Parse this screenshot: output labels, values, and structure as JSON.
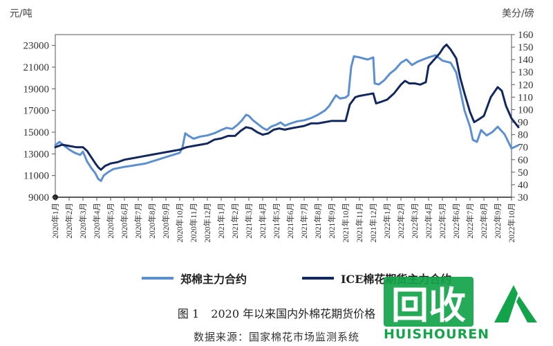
{
  "chart_data": {
    "type": "line",
    "left_axis_unit": "元/吨",
    "right_axis_unit": "美分/磅",
    "y_left": {
      "range": [
        9000,
        24000
      ],
      "ticks": [
        9000,
        11000,
        13000,
        15000,
        17000,
        19000,
        21000,
        23000
      ]
    },
    "y_right": {
      "range": [
        30,
        160
      ],
      "ticks": [
        30,
        40,
        50,
        60,
        70,
        80,
        90,
        100,
        110,
        120,
        130,
        140,
        150,
        160
      ]
    },
    "categories": [
      "2020年1月",
      "2020年2月",
      "2020年3月",
      "2020年4月",
      "2020年5月",
      "2020年6月",
      "2020年7月",
      "2020年8月",
      "2020年9月",
      "2020年10月",
      "2020年11月",
      "2020年12月",
      "2021年1月",
      "2021年2月",
      "2021年3月",
      "2021年4月",
      "2021年5月",
      "2021年6月",
      "2021年7月",
      "2021年8月",
      "2021年9月",
      "2021年10月",
      "2021年11月",
      "2021年12月",
      "2022年1月",
      "2022年2月",
      "2022年3月",
      "2022年4月",
      "2022年5月",
      "2022年6月",
      "2022年7月",
      "2022年8月",
      "2022年9月",
      "2022年10月"
    ],
    "series": [
      {
        "name": "郑棉主力合约",
        "axis": "left",
        "color": "#5b8fd0",
        "points": [
          [
            0,
            13800
          ],
          [
            0.3,
            14100
          ],
          [
            0.6,
            13800
          ],
          [
            1,
            13400
          ],
          [
            1.4,
            13100
          ],
          [
            1.8,
            12900
          ],
          [
            2,
            13200
          ],
          [
            2.3,
            12300
          ],
          [
            2.6,
            11700
          ],
          [
            2.9,
            11200
          ],
          [
            3.1,
            10700
          ],
          [
            3.3,
            10500
          ],
          [
            3.5,
            11000
          ],
          [
            3.8,
            11300
          ],
          [
            4.2,
            11600
          ],
          [
            4.6,
            11700
          ],
          [
            5,
            11800
          ],
          [
            5.5,
            11900
          ],
          [
            6,
            12000
          ],
          [
            6.5,
            12100
          ],
          [
            7,
            12300
          ],
          [
            7.5,
            12500
          ],
          [
            8,
            12700
          ],
          [
            8.5,
            12900
          ],
          [
            9,
            13100
          ],
          [
            9.2,
            13600
          ],
          [
            9.4,
            14900
          ],
          [
            9.6,
            14700
          ],
          [
            10,
            14400
          ],
          [
            10.5,
            14600
          ],
          [
            11,
            14700
          ],
          [
            11.5,
            14900
          ],
          [
            12,
            15200
          ],
          [
            12.4,
            15400
          ],
          [
            12.8,
            15300
          ],
          [
            13.2,
            15700
          ],
          [
            13.5,
            16100
          ],
          [
            13.8,
            16600
          ],
          [
            14,
            16500
          ],
          [
            14.3,
            16100
          ],
          [
            14.6,
            15800
          ],
          [
            15,
            15400
          ],
          [
            15.3,
            15200
          ],
          [
            15.6,
            15500
          ],
          [
            16,
            15700
          ],
          [
            16.3,
            15900
          ],
          [
            16.6,
            15600
          ],
          [
            17,
            15800
          ],
          [
            17.5,
            16000
          ],
          [
            18,
            16100
          ],
          [
            18.5,
            16300
          ],
          [
            19,
            16600
          ],
          [
            19.5,
            17000
          ],
          [
            19.8,
            17400
          ],
          [
            20,
            17800
          ],
          [
            20.3,
            18400
          ],
          [
            20.6,
            18100
          ],
          [
            21,
            18200
          ],
          [
            21.2,
            18400
          ],
          [
            21.4,
            21000
          ],
          [
            21.6,
            22000
          ],
          [
            22,
            21900
          ],
          [
            22.3,
            21800
          ],
          [
            22.6,
            21700
          ],
          [
            23,
            21900
          ],
          [
            23.1,
            19500
          ],
          [
            23.4,
            19400
          ],
          [
            23.8,
            19800
          ],
          [
            24.2,
            20400
          ],
          [
            24.6,
            20800
          ],
          [
            25,
            21400
          ],
          [
            25.4,
            21700
          ],
          [
            25.8,
            21200
          ],
          [
            26.2,
            21500
          ],
          [
            26.6,
            21700
          ],
          [
            27,
            21900
          ],
          [
            27.5,
            22100
          ],
          [
            28,
            21600
          ],
          [
            28.3,
            21500
          ],
          [
            28.6,
            21400
          ],
          [
            29,
            20500
          ],
          [
            29.3,
            18800
          ],
          [
            29.6,
            17000
          ],
          [
            30,
            15500
          ],
          [
            30.2,
            14300
          ],
          [
            30.5,
            14100
          ],
          [
            30.8,
            15200
          ],
          [
            31.2,
            14700
          ],
          [
            31.6,
            15000
          ],
          [
            32,
            15500
          ],
          [
            32.5,
            14800
          ],
          [
            33,
            13500
          ],
          [
            33.5,
            13800
          ]
        ]
      },
      {
        "name": "ICE棉花期货主力合约",
        "axis": "right",
        "color": "#12275e",
        "points": [
          [
            0,
            70
          ],
          [
            0.5,
            72
          ],
          [
            1,
            71
          ],
          [
            1.5,
            70
          ],
          [
            2,
            70
          ],
          [
            2.3,
            67
          ],
          [
            2.6,
            62
          ],
          [
            2.9,
            57
          ],
          [
            3.1,
            54
          ],
          [
            3.3,
            52
          ],
          [
            3.6,
            55
          ],
          [
            4,
            57
          ],
          [
            4.5,
            58
          ],
          [
            5,
            60
          ],
          [
            5.5,
            61
          ],
          [
            6,
            62
          ],
          [
            6.5,
            63
          ],
          [
            7,
            64
          ],
          [
            7.5,
            65
          ],
          [
            8,
            66
          ],
          [
            8.5,
            67
          ],
          [
            9,
            68
          ],
          [
            9.5,
            70
          ],
          [
            10,
            71
          ],
          [
            10.5,
            72
          ],
          [
            11,
            73
          ],
          [
            11.5,
            76
          ],
          [
            12,
            77
          ],
          [
            12.5,
            79
          ],
          [
            13,
            79
          ],
          [
            13.4,
            83
          ],
          [
            13.8,
            86
          ],
          [
            14.2,
            85
          ],
          [
            14.6,
            82
          ],
          [
            15,
            80
          ],
          [
            15.4,
            81
          ],
          [
            15.8,
            84
          ],
          [
            16.2,
            85
          ],
          [
            16.6,
            84
          ],
          [
            17,
            85
          ],
          [
            17.5,
            86
          ],
          [
            18,
            87
          ],
          [
            18.5,
            89
          ],
          [
            19,
            89
          ],
          [
            19.5,
            90
          ],
          [
            20,
            91
          ],
          [
            20.5,
            91
          ],
          [
            21,
            91
          ],
          [
            21.3,
            104
          ],
          [
            21.7,
            110
          ],
          [
            22,
            111
          ],
          [
            22.5,
            112
          ],
          [
            23,
            113
          ],
          [
            23.2,
            105
          ],
          [
            23.5,
            106
          ],
          [
            24,
            108
          ],
          [
            24.5,
            113
          ],
          [
            25,
            120
          ],
          [
            25.3,
            123
          ],
          [
            25.6,
            121
          ],
          [
            26,
            121
          ],
          [
            26.4,
            120
          ],
          [
            26.8,
            122
          ],
          [
            27,
            135
          ],
          [
            27.4,
            140
          ],
          [
            27.8,
            145
          ],
          [
            28.1,
            150
          ],
          [
            28.3,
            152
          ],
          [
            28.6,
            148
          ],
          [
            29,
            141
          ],
          [
            29.3,
            125
          ],
          [
            29.6,
            113
          ],
          [
            30,
            98
          ],
          [
            30.3,
            90
          ],
          [
            30.6,
            92
          ],
          [
            31,
            95
          ],
          [
            31.5,
            110
          ],
          [
            32,
            118
          ],
          [
            32.3,
            115
          ],
          [
            32.6,
            103
          ],
          [
            33,
            93
          ],
          [
            33.5,
            86
          ]
        ]
      }
    ]
  },
  "legend": [
    {
      "label": "郑棉主力合约",
      "color": "#5b8fd0"
    },
    {
      "label": "ICE棉花期货主力合约",
      "color": "#12275e"
    }
  ],
  "caption": {
    "fig": "图 1",
    "title": "2020 年以来国内外棉花期货价格"
  },
  "source": "数据来源：国家棉花市场监测系统",
  "watermark": {
    "logo": "回收",
    "text": "HUISHOUREN",
    "color": "#13a34a"
  }
}
